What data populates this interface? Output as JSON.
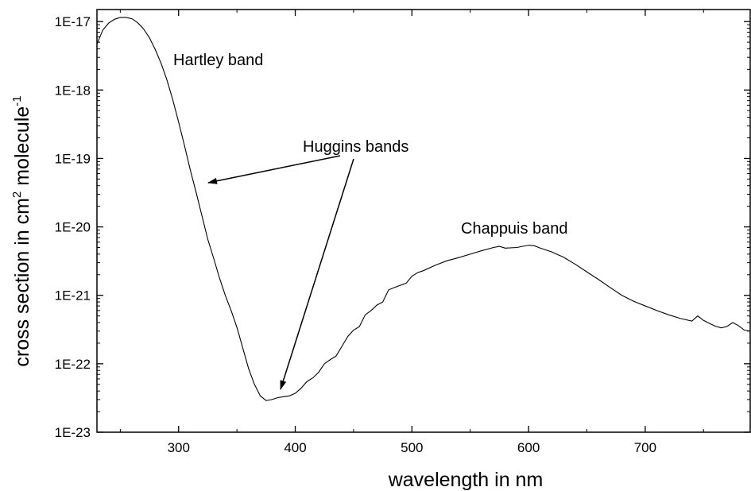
{
  "chart_data": {
    "type": "line",
    "xlabel": "wavelength in nm",
    "ylabel": {
      "main": "cross section in cm",
      "sup1": "2",
      "mid": " molecule",
      "sup2": "-1"
    },
    "xlim": [
      230,
      790
    ],
    "ylim": [
      1e-23,
      1.5e-17
    ],
    "yscale": "log",
    "grid": false,
    "x_ticks": [
      300,
      400,
      500,
      600,
      700
    ],
    "x_tick_labels": [
      "300",
      "400",
      "500",
      "600",
      "700"
    ],
    "y_ticks": [
      1e-17,
      1e-18,
      1e-19,
      1e-20,
      1e-21,
      1e-22,
      1e-23
    ],
    "y_tick_labels": [
      "1E-17",
      "1E-18",
      "1E-19",
      "1E-20",
      "1E-21",
      "1E-22",
      "1E-23"
    ],
    "series": [
      {
        "x": [
          230,
          235,
          240,
          245,
          250,
          255,
          260,
          265,
          270,
          275,
          280,
          285,
          290,
          295,
          300,
          305,
          310,
          315,
          320,
          325,
          330,
          335,
          340,
          345,
          350,
          355,
          360,
          365,
          370,
          375,
          380,
          385,
          390,
          395,
          400,
          405,
          410,
          415,
          420,
          425,
          430,
          435,
          440,
          445,
          450,
          455,
          460,
          465,
          470,
          475,
          480,
          485,
          490,
          495,
          500,
          505,
          510,
          520,
          530,
          540,
          550,
          560,
          570,
          575,
          580,
          590,
          600,
          605,
          610,
          620,
          630,
          640,
          650,
          660,
          670,
          680,
          690,
          700,
          710,
          720,
          730,
          740,
          745,
          750,
          755,
          760,
          765,
          770,
          775,
          780,
          785,
          790
        ],
        "y": [
          4.7e-18,
          7.5e-18,
          9.5e-18,
          1.08e-17,
          1.15e-17,
          1.15e-17,
          1.1e-17,
          9.6e-18,
          7.8e-18,
          5.8e-18,
          3.9e-18,
          2.45e-18,
          1.4e-18,
          7.2e-19,
          3.4e-19,
          1.55e-19,
          6.8e-20,
          3.2e-20,
          1.45e-20,
          6.6e-21,
          3.5e-21,
          1.8e-21,
          1e-21,
          6e-22,
          3.4e-22,
          1.7e-22,
          8.5e-23,
          5e-23,
          3.4e-23,
          2.9e-23,
          3e-23,
          3.2e-23,
          3.3e-23,
          3.4e-23,
          3.7e-23,
          4.4e-23,
          5.5e-23,
          6.2e-23,
          7.5e-23,
          1e-22,
          1.15e-22,
          1.3e-22,
          1.8e-22,
          2.5e-22,
          3.1e-22,
          3.5e-22,
          5.2e-22,
          6e-22,
          7.2e-22,
          8e-22,
          1.2e-21,
          1.3e-21,
          1.4e-21,
          1.5e-21,
          1.9e-21,
          2.15e-21,
          2.3e-21,
          2.75e-21,
          3.2e-21,
          3.55e-21,
          4e-21,
          4.5e-21,
          5e-21,
          5.2e-21,
          4.9e-21,
          5e-21,
          5.4e-21,
          5.3e-21,
          4.9e-21,
          4.3e-21,
          3.6e-21,
          2.85e-21,
          2.2e-21,
          1.7e-21,
          1.3e-21,
          1e-21,
          8.2e-22,
          7e-22,
          6e-22,
          5.2e-22,
          4.6e-22,
          4.2e-22,
          5e-22,
          4.3e-22,
          3.9e-22,
          3.55e-22,
          3.35e-22,
          3.5e-22,
          4e-22,
          3.6e-22,
          3.1e-22,
          3e-22
        ]
      }
    ],
    "annotations": [
      {
        "text": "Hartley band"
      },
      {
        "text": "Huggins bands"
      },
      {
        "text": "Chappuis band"
      }
    ]
  }
}
